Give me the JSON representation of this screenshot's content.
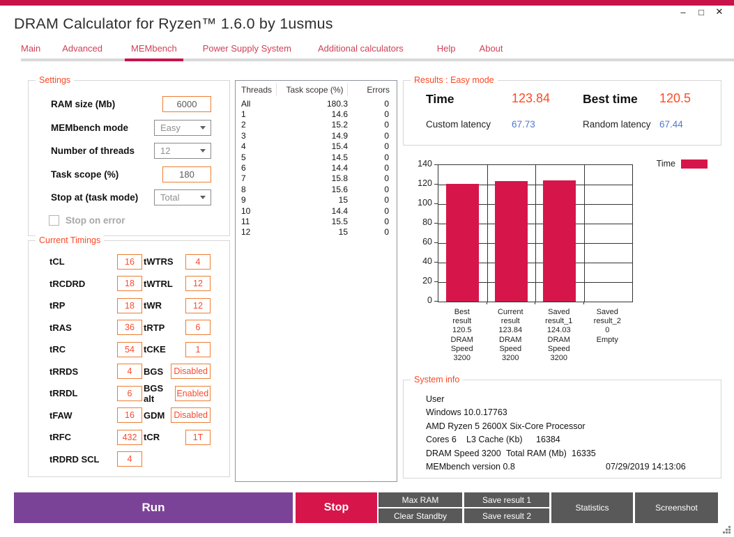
{
  "window": {
    "title": "DRAM Calculator for Ryzen™ 1.6.0 by 1usmus",
    "minimize": "–",
    "maximize": "□",
    "close": "✕"
  },
  "tabs": [
    {
      "label": "Main",
      "active": false
    },
    {
      "label": "Advanced",
      "active": false
    },
    {
      "label": "MEMbench",
      "active": true
    },
    {
      "label": "Power Supply System",
      "active": false
    },
    {
      "label": "Additional calculators",
      "active": false
    },
    {
      "label": "Help",
      "active": false
    },
    {
      "label": "About",
      "active": false
    }
  ],
  "settings": {
    "label": "Settings",
    "rows": [
      {
        "label": "RAM size (Mb)",
        "value": "6000",
        "type": "input"
      },
      {
        "label": "MEMbench mode",
        "value": "Easy",
        "type": "select"
      },
      {
        "label": "Number of threads",
        "value": "12",
        "type": "select"
      },
      {
        "label": "Task scope (%)",
        "value": "180",
        "type": "input"
      },
      {
        "label": "Stop at (task mode)",
        "value": "Total",
        "type": "select"
      }
    ],
    "stop_on_error": {
      "label": "Stop on error",
      "checked": false
    }
  },
  "timings": {
    "label": "Current Timings",
    "left": [
      {
        "name": "tCL",
        "value": "16"
      },
      {
        "name": "tRCDRD",
        "value": "18"
      },
      {
        "name": "tRP",
        "value": "18"
      },
      {
        "name": "tRAS",
        "value": "36"
      },
      {
        "name": "tRC",
        "value": "54"
      },
      {
        "name": "tRRDS",
        "value": "4"
      },
      {
        "name": "tRRDL",
        "value": "6"
      },
      {
        "name": "tFAW",
        "value": "16"
      },
      {
        "name": "tRFC",
        "value": "432"
      },
      {
        "name": "tRDRD SCL",
        "value": "4"
      }
    ],
    "right": [
      {
        "name": "tWTRS",
        "value": "4"
      },
      {
        "name": "tWTRL",
        "value": "12"
      },
      {
        "name": "tWR",
        "value": "12"
      },
      {
        "name": "tRTP",
        "value": "6"
      },
      {
        "name": "tCKE",
        "value": "1"
      },
      {
        "name": "BGS",
        "value": "Disabled"
      },
      {
        "name": "BGS alt",
        "value": "Enabled"
      },
      {
        "name": "GDM",
        "value": "Disabled"
      },
      {
        "name": "tCR",
        "value": "1T"
      }
    ]
  },
  "threads_table": {
    "headers": [
      "Threads",
      "Task scope (%)",
      "Errors"
    ],
    "rows": [
      [
        "All",
        "180.3",
        "0"
      ],
      [
        "1",
        "14.6",
        "0"
      ],
      [
        "2",
        "15.2",
        "0"
      ],
      [
        "3",
        "14.9",
        "0"
      ],
      [
        "4",
        "15.4",
        "0"
      ],
      [
        "5",
        "14.5",
        "0"
      ],
      [
        "6",
        "14.4",
        "0"
      ],
      [
        "7",
        "15.8",
        "0"
      ],
      [
        "8",
        "15.6",
        "0"
      ],
      [
        "9",
        "15",
        "0"
      ],
      [
        "10",
        "14.4",
        "0"
      ],
      [
        "11",
        "15.5",
        "0"
      ],
      [
        "12",
        "15",
        "0"
      ]
    ]
  },
  "results": {
    "label": "Results : Easy mode",
    "time_label": "Time",
    "time_value": "123.84",
    "best_label": "Best time",
    "best_value": "120.5",
    "custom_label": "Custom latency",
    "custom_value": "67.73",
    "random_label": "Random latency",
    "random_value": "67.44"
  },
  "chart_data": {
    "type": "bar",
    "title": "",
    "legend": [
      "Time"
    ],
    "legend_position": "top-right",
    "categories": [
      "Best result",
      "Current result",
      "Saved result_1",
      "Saved result_2"
    ],
    "values": [
      120.5,
      123.84,
      124.03,
      0
    ],
    "tick_label_lines": [
      [
        "Best",
        "result",
        "120.5",
        "DRAM",
        "Speed",
        "3200"
      ],
      [
        "Current",
        "result",
        "123.84",
        "DRAM",
        "Speed",
        "3200"
      ],
      [
        "Saved",
        "result_1",
        "124.03",
        "DRAM",
        "Speed",
        "3200"
      ],
      [
        "Saved",
        "result_2",
        "0",
        "Empty"
      ]
    ],
    "ylim": [
      0,
      140
    ],
    "yticks": [
      0,
      20,
      40,
      60,
      80,
      100,
      120,
      140
    ],
    "grid": true,
    "bar_color": "#d6164a"
  },
  "system_info": {
    "label": "System info",
    "lines": [
      [
        "User"
      ],
      [
        "Windows 10.0.17763"
      ],
      [
        "AMD Ryzen 5 2600X Six-Core Processor"
      ],
      [
        "Cores 6",
        "L3 Cache (Kb)",
        "16384"
      ],
      [
        "DRAM Speed 3200",
        "Total RAM (Mb)",
        "16335"
      ],
      [
        "MEMbench version 0.8",
        "07/29/2019 14:13:06"
      ]
    ]
  },
  "buttons": {
    "run": "Run",
    "stop": "Stop",
    "max_ram": "Max RAM",
    "clear_standby": "Clear Standby",
    "save1": "Save result 1",
    "save2": "Save result 2",
    "statistics": "Statistics",
    "screenshot": "Screenshot"
  },
  "colors": {
    "accent_crimson": "#c8134a",
    "bar_crimson": "#d6164a",
    "run_purple": "#7b4397",
    "button_gray": "#595959",
    "group_label_orange": "#fb4724",
    "input_border_orange": "#ed7d31",
    "timing_value_orange": "#fa4a2e",
    "result_value_orange": "#ff4b22",
    "latency_blue": "#4d7ad1"
  }
}
